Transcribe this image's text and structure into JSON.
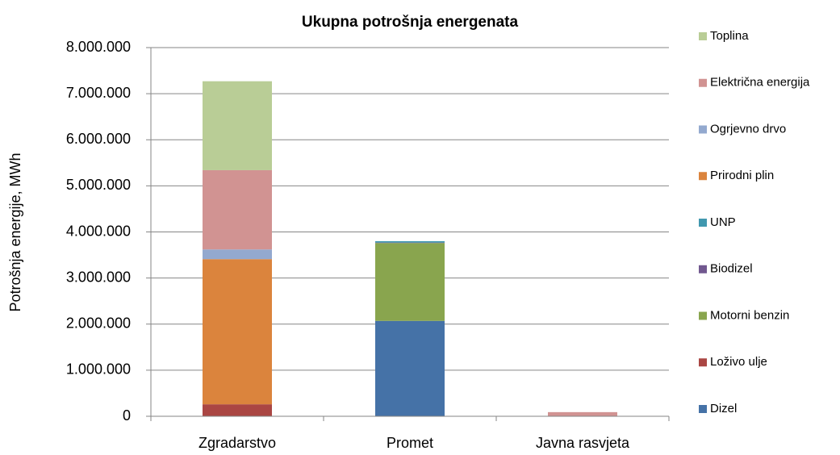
{
  "chart_data": {
    "type": "stacked_bar",
    "title": "Ukupna potrošnja energenata",
    "y_label": "Potrošnja energije, MWh",
    "categories": [
      "Zgradarstvo",
      "Promet",
      "Javna rasvjeta"
    ],
    "series": [
      {
        "name": "Dizel",
        "color": "#4572a7",
        "values": [
          0,
          2070000,
          0
        ]
      },
      {
        "name": "Loživo ulje",
        "color": "#aa4643",
        "values": [
          260000,
          0,
          0
        ]
      },
      {
        "name": "Motorni benzin",
        "color": "#89a54e",
        "values": [
          0,
          1690000,
          0
        ]
      },
      {
        "name": "Biodizel",
        "color": "#71588f",
        "values": [
          0,
          10000,
          0
        ]
      },
      {
        "name": "UNP",
        "color": "#4198af",
        "values": [
          0,
          30000,
          0
        ]
      },
      {
        "name": "Prirodni plin",
        "color": "#db843d",
        "values": [
          3150000,
          0,
          0
        ]
      },
      {
        "name": "Ogrjevno drvo",
        "color": "#93a9cf",
        "values": [
          210000,
          0,
          0
        ]
      },
      {
        "name": "Električna energija",
        "color": "#d19392",
        "values": [
          1720000,
          0,
          90000
        ]
      },
      {
        "name": "Toplina",
        "color": "#b9cd96",
        "values": [
          1930000,
          0,
          0
        ]
      }
    ],
    "ylim": [
      0,
      8000000
    ],
    "yticks": [
      0,
      {
        "value": 1000000,
        "label": "1.000.000"
      },
      {
        "value": 2000000,
        "label": "2.000.000"
      },
      {
        "value": 3000000,
        "label": "3.000.000"
      },
      {
        "value": 4000000,
        "label": "4.000.000"
      },
      {
        "value": 5000000,
        "label": "5.000.000"
      },
      {
        "value": 6000000,
        "label": "6.000.000"
      },
      {
        "value": 7000000,
        "label": "7.000.000"
      },
      {
        "value": 8000000,
        "label": "8.000.000"
      }
    ],
    "grid": true,
    "legend": "right"
  }
}
